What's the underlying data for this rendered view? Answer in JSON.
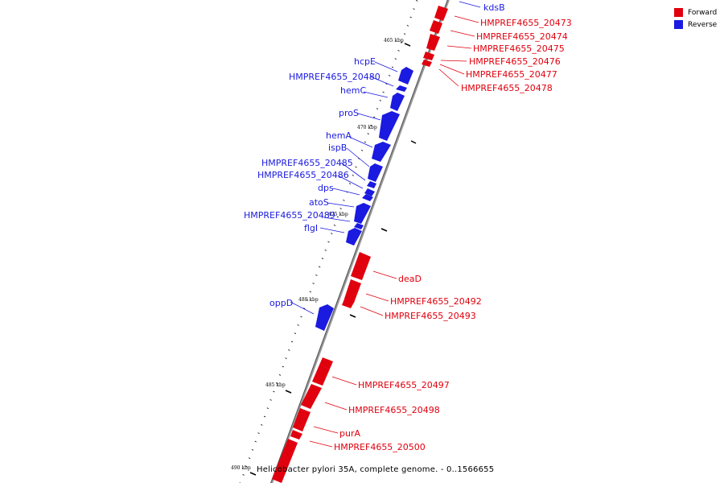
{
  "colors": {
    "forward": "#e0000e",
    "reverse": "#1a1ae0"
  },
  "legend": {
    "forward_label": "Forward",
    "reverse_label": "Reverse"
  },
  "footer_text": "Helicobacter pylori 35A, complete genome. - 0..1566655",
  "axis_ticks": [
    "465 kbp",
    "470 kbp",
    "475 kbp",
    "480 kbp",
    "485 kbp",
    "490 kbp"
  ],
  "genes": {
    "forward": [
      "kdsB",
      "HMPREF4655_20473",
      "HMPREF4655_20474",
      "HMPREF4655_20475",
      "HMPREF4655_20476",
      "HMPREF4655_20477",
      "HMPREF4655_20478",
      "deaD",
      "HMPREF4655_20492",
      "HMPREF4655_20493",
      "HMPREF4655_20497",
      "HMPREF4655_20498",
      "purA",
      "HMPREF4655_20500"
    ],
    "reverse": [
      "hcpE",
      "HMPREF4655_20480",
      "hemC",
      "proS",
      "hemA",
      "ispB",
      "HMPREF4655_20485",
      "HMPREF4655_20486",
      "dps",
      "atoS",
      "HMPREF4655_20489",
      "flgI",
      "oppD"
    ]
  }
}
